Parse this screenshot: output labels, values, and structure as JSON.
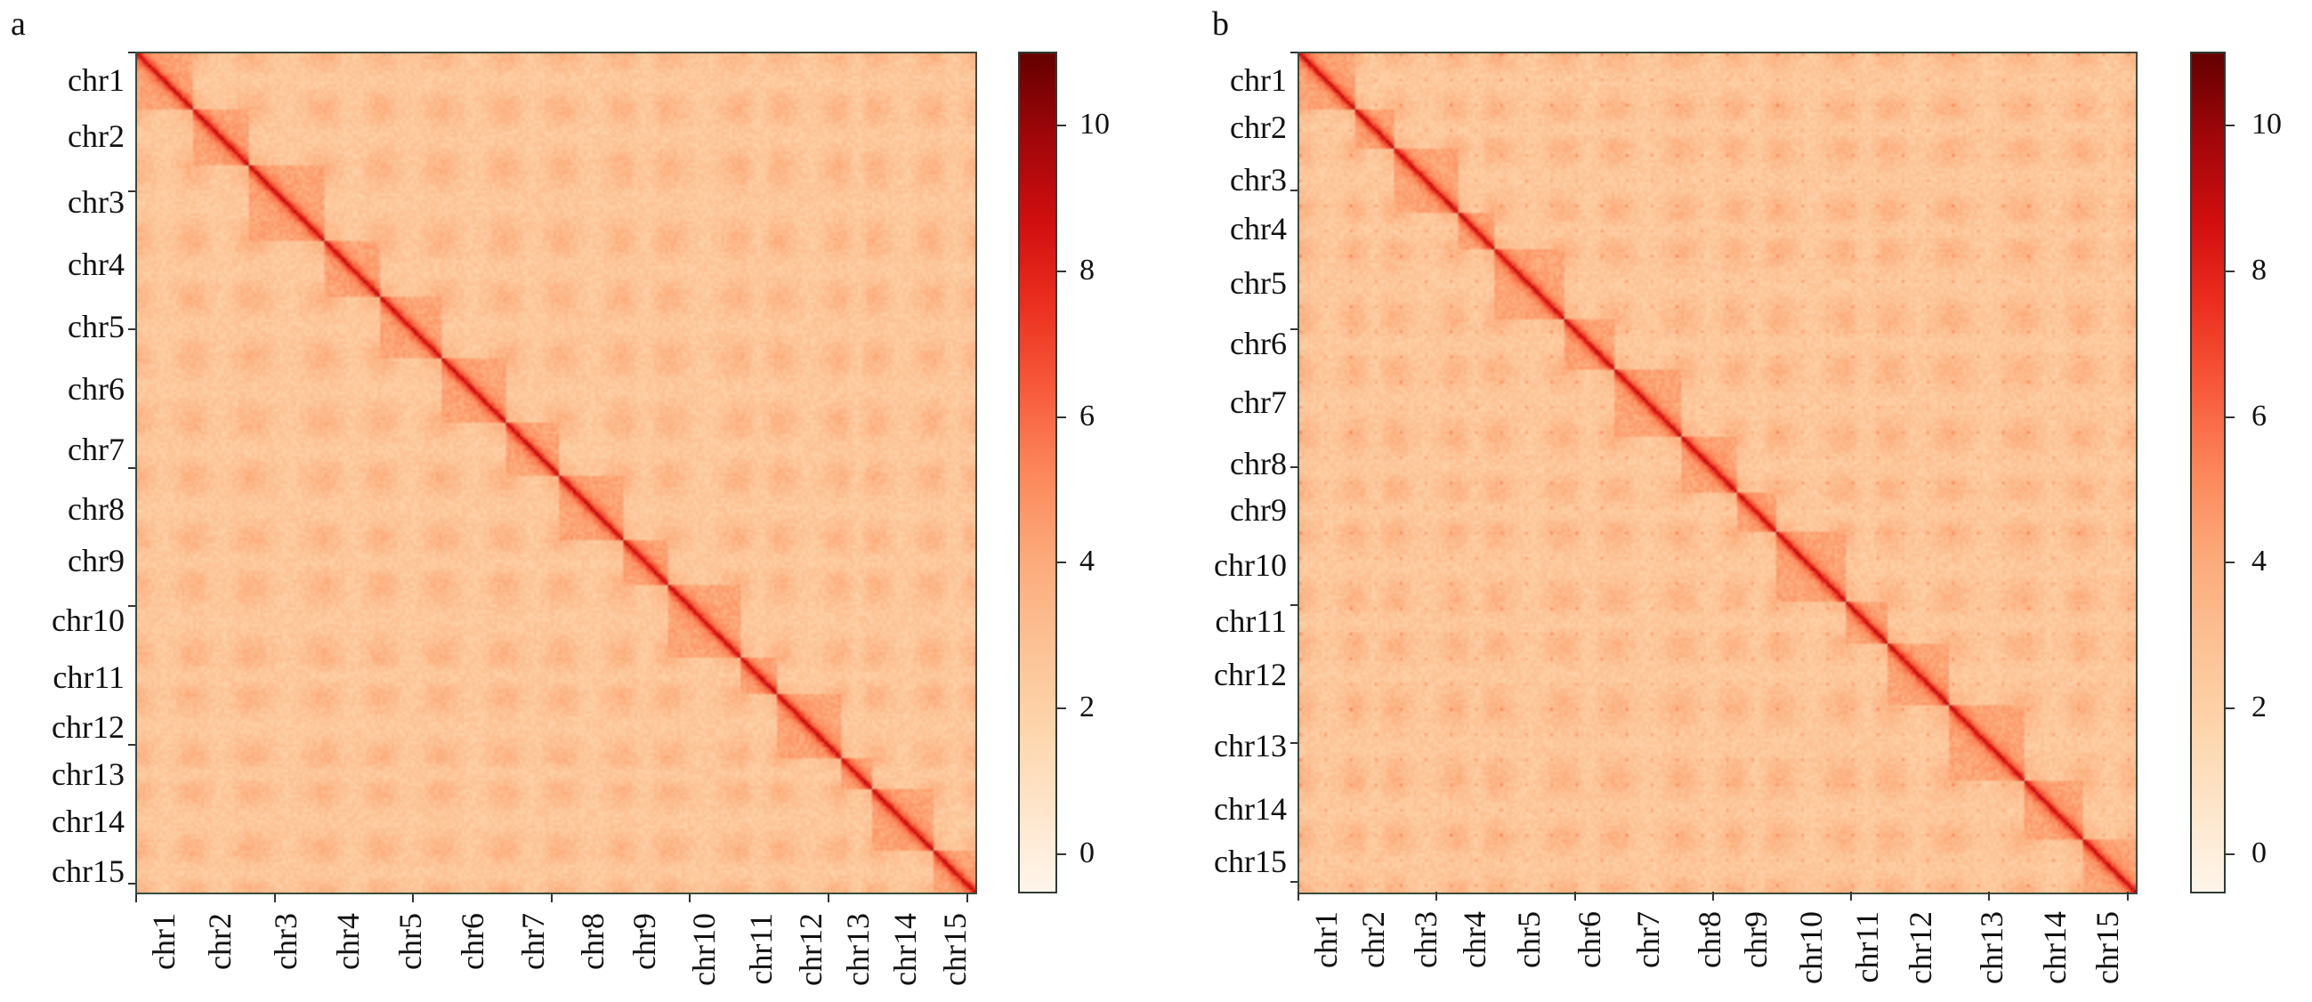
{
  "chart_data": [
    {
      "type": "heatmap",
      "panel_label": "a",
      "x_tick_labels": [
        "chr1",
        "chr2",
        "chr3",
        "chr4",
        "chr5",
        "chr6",
        "chr7",
        "chr8",
        "chr9",
        "chr10",
        "chr11",
        "chr12",
        "chr13",
        "chr14",
        "chr15"
      ],
      "y_tick_labels": [
        "chr1",
        "chr2",
        "chr3",
        "chr4",
        "chr5",
        "chr6",
        "chr7",
        "chr8",
        "chr9",
        "chr10",
        "chr11",
        "chr12",
        "chr13",
        "chr14",
        "chr15"
      ],
      "colorbar": {
        "ticks": [
          0,
          2,
          4,
          6,
          8,
          10
        ],
        "range": [
          -0.55,
          11
        ],
        "colormap": "OrRd"
      },
      "diagonal": "strong intra-chromosomal signal along main diagonal"
    },
    {
      "type": "heatmap",
      "panel_label": "b",
      "x_tick_labels": [
        "chr1",
        "chr2",
        "chr3",
        "chr4",
        "chr5",
        "chr6",
        "chr7",
        "chr8",
        "chr9",
        "chr10",
        "chr11",
        "chr12",
        "chr13",
        "chr14",
        "chr15"
      ],
      "y_tick_labels": [
        "chr1",
        "chr2",
        "chr3",
        "chr4",
        "chr5",
        "chr6",
        "chr7",
        "chr8",
        "chr9",
        "chr10",
        "chr11",
        "chr12",
        "chr13",
        "chr14",
        "chr15"
      ],
      "colorbar": {
        "ticks": [
          0,
          2,
          4,
          6,
          8,
          10
        ],
        "range": [
          -0.55,
          11
        ],
        "colormap": "OrRd"
      },
      "diagonal": "strong intra-chromosomal signal along main diagonal"
    }
  ],
  "colors": {
    "low": "#fff4e8",
    "mid": "#fca97a",
    "high": "#680000",
    "frame": "#3c4a3c"
  }
}
